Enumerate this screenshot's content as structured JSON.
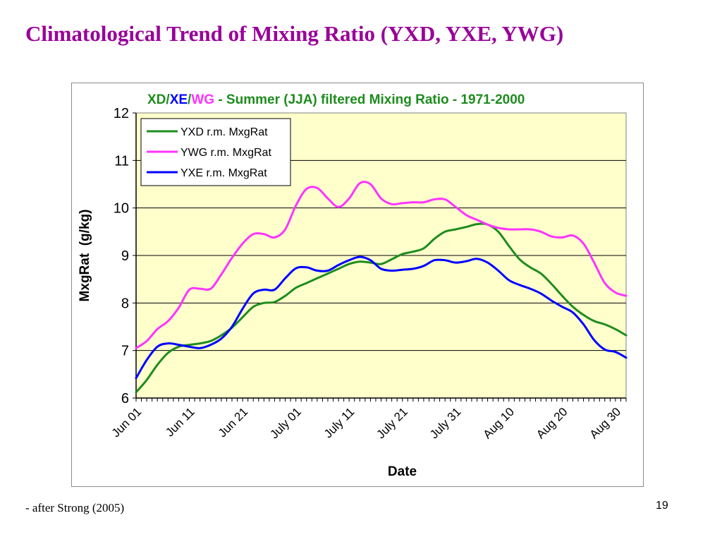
{
  "slide": {
    "title": "Climatological Trend of Mixing Ratio (YXD, YXE, YWG)",
    "footnote": "- after Strong (2005)",
    "page_number": "19"
  },
  "colors": {
    "title": "#990099",
    "plot_background": "#ffffcc",
    "axis_text": "#000000",
    "YXD": "#1e8c1e",
    "YWG": "#ff33ff",
    "YXE": "#0000ff"
  },
  "chart_data": {
    "type": "line",
    "title_parts": [
      {
        "text": "XD",
        "color": "#1e8c1e"
      },
      {
        "text": "/",
        "color": "#1e8c1e"
      },
      {
        "text": "XE",
        "color": "#0000ff"
      },
      {
        "text": "/",
        "color": "#1e8c1e"
      },
      {
        "text": "WG",
        "color": "#ff33ff"
      },
      {
        "text": " - Summer (JJA) filtered Mixing Ratio - 1971-2000",
        "color": "#1e8c1e"
      }
    ],
    "xlabel": "Date",
    "ylabel": "MxgRat  (g/kg)",
    "ylim": [
      6,
      12
    ],
    "yticks": [
      6,
      7,
      8,
      9,
      10,
      11,
      12
    ],
    "ygrid": true,
    "legend_position": "top-left",
    "x_day_range": [
      0,
      92
    ],
    "x_tick_labels": [
      {
        "label": "Jun 01",
        "day": 0
      },
      {
        "label": "Jun 11",
        "day": 10
      },
      {
        "label": "Jun 21",
        "day": 20
      },
      {
        "label": "July 01",
        "day": 30
      },
      {
        "label": "July 11",
        "day": 40
      },
      {
        "label": "July 21",
        "day": 50
      },
      {
        "label": "July 31",
        "day": 60
      },
      {
        "label": "Aug 10",
        "day": 70
      },
      {
        "label": "Aug 20",
        "day": 80
      },
      {
        "label": "Aug 30",
        "day": 90
      }
    ],
    "series": [
      {
        "name": "YXD r.m. MxgRat",
        "key": "YXD",
        "color": "#1e8c1e",
        "x": [
          0,
          2,
          4,
          6,
          8,
          10,
          12,
          14,
          16,
          18,
          20,
          22,
          24,
          26,
          28,
          30,
          32,
          34,
          36,
          38,
          40,
          42,
          44,
          46,
          48,
          50,
          52,
          54,
          56,
          58,
          60,
          62,
          64,
          66,
          68,
          70,
          72,
          74,
          76,
          78,
          80,
          82,
          84,
          86,
          88,
          90,
          92
        ],
        "values": [
          6.12,
          6.38,
          6.7,
          6.95,
          7.08,
          7.12,
          7.15,
          7.2,
          7.32,
          7.48,
          7.7,
          7.92,
          8.0,
          8.02,
          8.15,
          8.32,
          8.42,
          8.52,
          8.62,
          8.72,
          8.82,
          8.87,
          8.85,
          8.82,
          8.92,
          9.03,
          9.08,
          9.15,
          9.35,
          9.5,
          9.55,
          9.6,
          9.66,
          9.65,
          9.5,
          9.2,
          8.92,
          8.75,
          8.62,
          8.4,
          8.15,
          7.92,
          7.75,
          7.62,
          7.55,
          7.45,
          7.32
        ]
      },
      {
        "name": "YWG r.m. MxgRat",
        "key": "YWG",
        "color": "#ff33ff",
        "x": [
          0,
          2,
          4,
          6,
          8,
          10,
          12,
          14,
          16,
          18,
          20,
          22,
          24,
          26,
          28,
          30,
          32,
          34,
          36,
          38,
          40,
          42,
          44,
          46,
          48,
          50,
          52,
          54,
          56,
          58,
          60,
          62,
          64,
          66,
          68,
          70,
          72,
          74,
          76,
          78,
          80,
          82,
          84,
          86,
          88,
          90,
          92
        ],
        "values": [
          7.05,
          7.2,
          7.45,
          7.62,
          7.9,
          8.28,
          8.3,
          8.3,
          8.6,
          8.95,
          9.25,
          9.45,
          9.45,
          9.38,
          9.55,
          10.05,
          10.4,
          10.42,
          10.2,
          10.02,
          10.2,
          10.52,
          10.5,
          10.2,
          10.08,
          10.1,
          10.12,
          10.12,
          10.18,
          10.18,
          10.02,
          9.85,
          9.75,
          9.65,
          9.58,
          9.55,
          9.55,
          9.55,
          9.5,
          9.4,
          9.38,
          9.42,
          9.25,
          8.85,
          8.42,
          8.22,
          8.15
        ]
      },
      {
        "name": "YXE r.m. MxgRat",
        "key": "YXE",
        "color": "#0000ff",
        "x": [
          0,
          2,
          4,
          6,
          8,
          10,
          12,
          14,
          16,
          18,
          20,
          22,
          24,
          26,
          28,
          30,
          32,
          34,
          36,
          38,
          40,
          42,
          44,
          46,
          48,
          50,
          52,
          54,
          56,
          58,
          60,
          62,
          64,
          66,
          68,
          70,
          72,
          74,
          76,
          78,
          80,
          82,
          84,
          86,
          88,
          90,
          92
        ],
        "values": [
          6.42,
          6.8,
          7.08,
          7.15,
          7.12,
          7.08,
          7.05,
          7.12,
          7.25,
          7.5,
          7.88,
          8.2,
          8.28,
          8.28,
          8.52,
          8.73,
          8.75,
          8.68,
          8.68,
          8.8,
          8.9,
          8.97,
          8.9,
          8.72,
          8.68,
          8.7,
          8.72,
          8.78,
          8.9,
          8.9,
          8.85,
          8.88,
          8.93,
          8.85,
          8.68,
          8.48,
          8.38,
          8.3,
          8.2,
          8.05,
          7.92,
          7.8,
          7.55,
          7.22,
          7.02,
          6.97,
          6.85
        ]
      }
    ]
  }
}
